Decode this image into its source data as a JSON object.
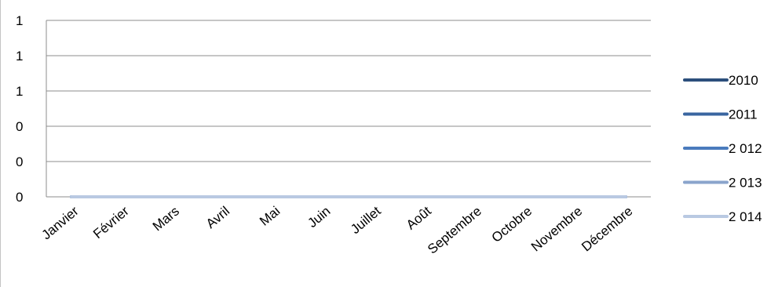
{
  "chart_data": {
    "type": "line",
    "title": "",
    "xlabel": "",
    "ylabel": "",
    "categories": [
      "Janvier",
      "Février",
      "Mars",
      "Avril",
      "Mai",
      "Juin",
      "Juillet",
      "Août",
      "Septembre",
      "Octobre",
      "Novembre",
      "Décembre"
    ],
    "y_tick_labels": [
      "0",
      "0",
      "0",
      "1",
      "1",
      "1"
    ],
    "ylim": [
      0,
      1
    ],
    "grid": true,
    "legend_position": "right",
    "series": [
      {
        "name": "2010",
        "color": "#2c4f7c",
        "values": [
          0,
          0,
          0,
          0,
          0,
          0,
          0,
          0,
          0,
          0,
          0,
          0
        ]
      },
      {
        "name": "2011",
        "color": "#3a66a0",
        "values": [
          0,
          0,
          0,
          0,
          0,
          0,
          0,
          0,
          0,
          0,
          0,
          0
        ]
      },
      {
        "name": "2 012",
        "color": "#4a7bbd",
        "values": [
          0,
          0,
          0,
          0,
          0,
          0,
          0,
          0,
          0,
          0,
          0,
          0
        ]
      },
      {
        "name": "2 013",
        "color": "#8aa4cc",
        "values": [
          0,
          0,
          0,
          0,
          0,
          0,
          0,
          0,
          0,
          0,
          0,
          0
        ]
      },
      {
        "name": "2 014",
        "color": "#b9c9e2",
        "values": [
          0,
          0,
          0,
          0,
          0,
          0,
          0,
          0,
          0,
          0,
          0,
          0
        ]
      }
    ]
  }
}
